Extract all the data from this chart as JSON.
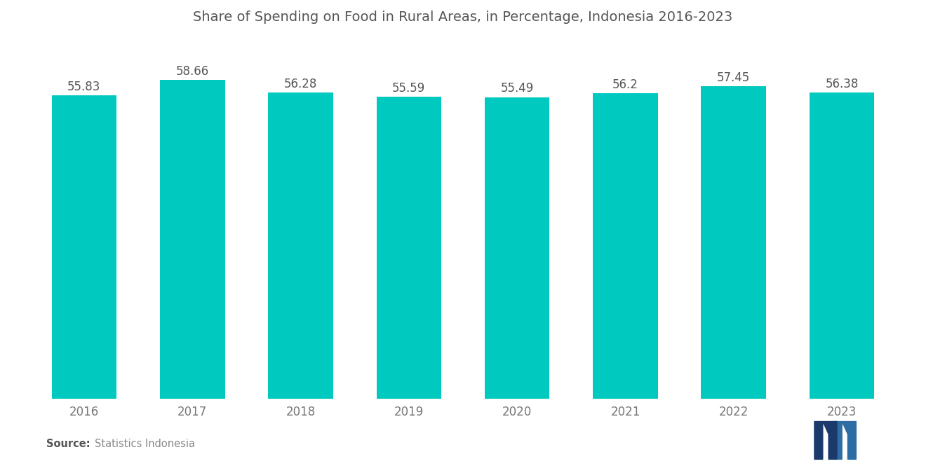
{
  "title": "Share of Spending on Food in Rural Areas, in Percentage, Indonesia 2016-2023",
  "categories": [
    "2016",
    "2017",
    "2018",
    "2019",
    "2020",
    "2021",
    "2022",
    "2023"
  ],
  "values": [
    55.83,
    58.66,
    56.28,
    55.59,
    55.49,
    56.2,
    57.45,
    56.38
  ],
  "bar_color": "#00C9C0",
  "background_color": "#ffffff",
  "title_fontsize": 14,
  "tick_fontsize": 12,
  "value_fontsize": 12,
  "source_bold": "Source:",
  "source_normal": "  Statistics Indonesia",
  "title_color": "#555555",
  "tick_color": "#777777",
  "value_color": "#555555",
  "ylim_min": 0,
  "ylim_max": 65,
  "bar_width": 0.6
}
